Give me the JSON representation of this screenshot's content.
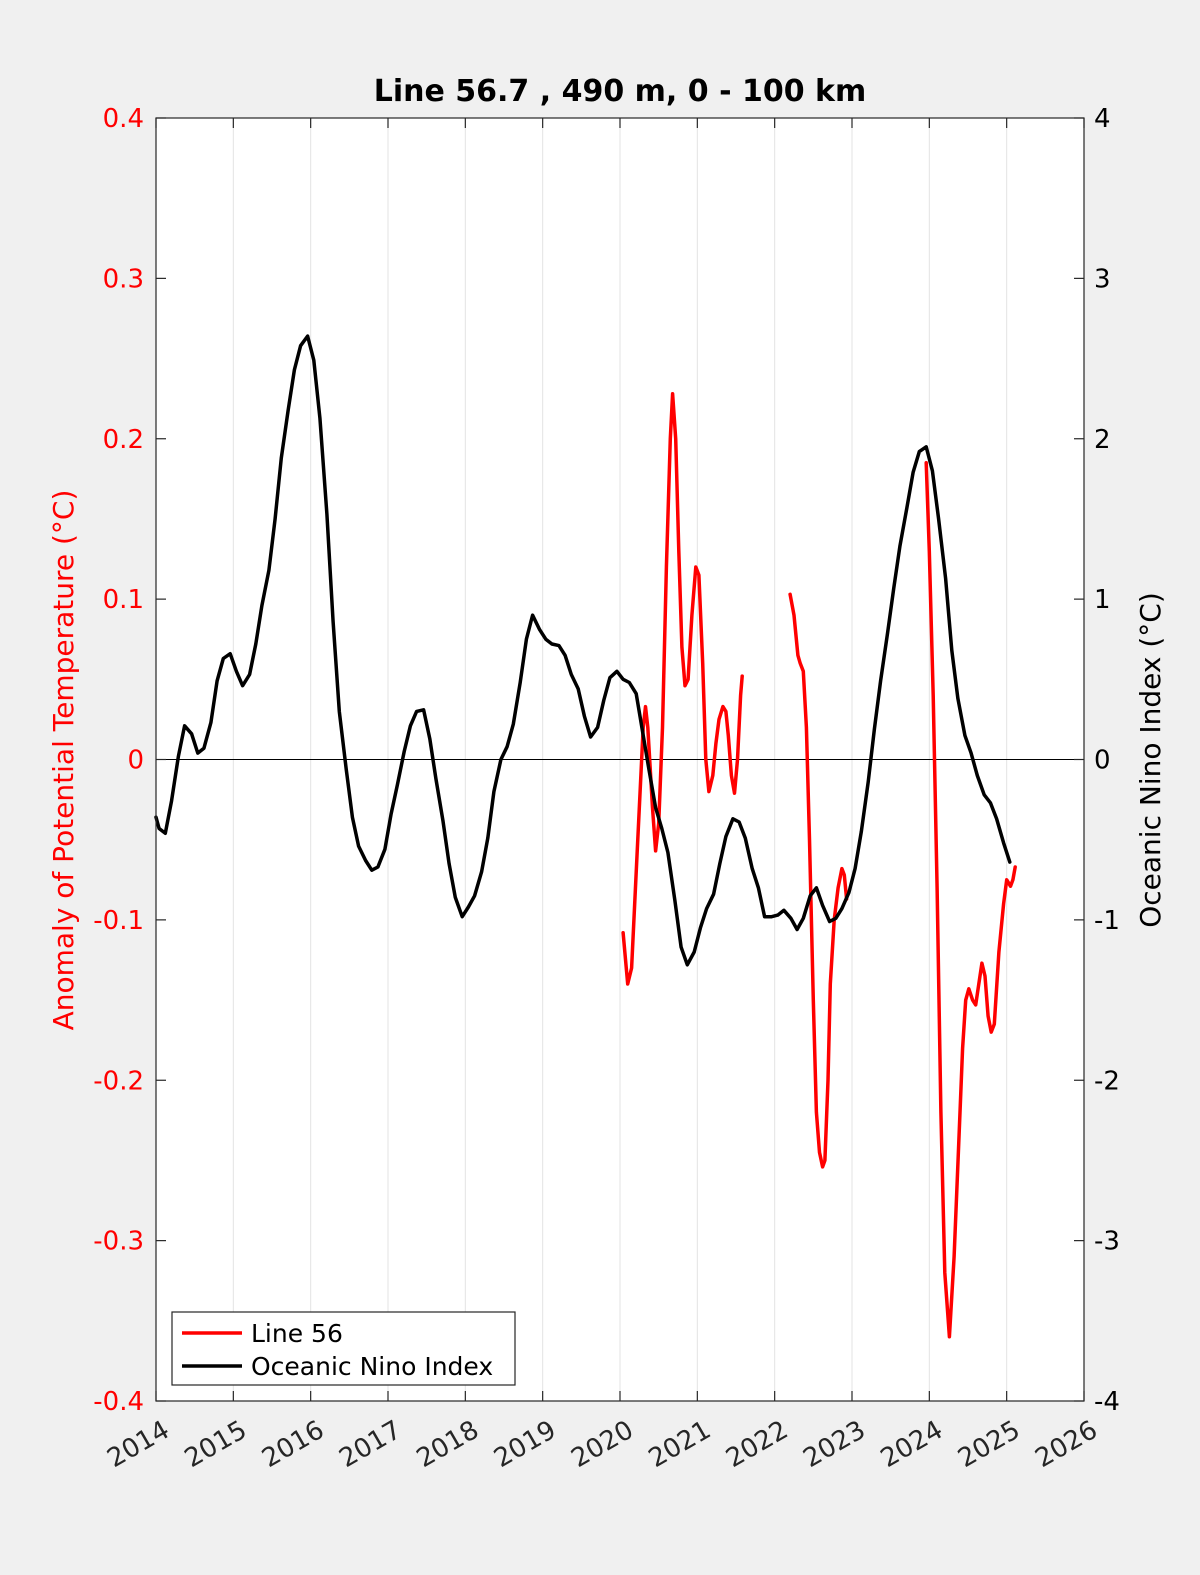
{
  "chart_data": {
    "type": "line",
    "title": "Line 56.7 , 490 m, 0 - 100 km",
    "xlim": [
      2014,
      2026
    ],
    "x_ticks": [
      "2014",
      "2015",
      "2016",
      "2017",
      "2018",
      "2019",
      "2020",
      "2021",
      "2022",
      "2023",
      "2024",
      "2025",
      "2026"
    ],
    "grid": "vertical",
    "legend_position": "bottom-left",
    "y_left": {
      "label": "Anomaly of Potential Temperature (°C)",
      "ylim": [
        -0.4,
        0.4
      ],
      "ticks": [
        "-0.4",
        "-0.3",
        "-0.2",
        "-0.1",
        "0",
        "0.1",
        "0.2",
        "0.3",
        "0.4"
      ],
      "color": "#ff0000"
    },
    "y_right": {
      "label": "Oceanic Nino Index (°C)",
      "ylim": [
        -4,
        4
      ],
      "ticks": [
        "-4",
        "-3",
        "-2",
        "-1",
        "0",
        "1",
        "2",
        "3",
        "4"
      ],
      "color": "#000000"
    },
    "series": [
      {
        "name": "Line 56",
        "color": "#ff0000",
        "axis": "left",
        "segments": [
          [
            [
              2020.04,
              -0.108
            ],
            [
              2020.1,
              -0.14
            ],
            [
              2020.15,
              -0.13
            ],
            [
              2020.22,
              -0.06
            ],
            [
              2020.3,
              0.02
            ],
            [
              2020.33,
              0.033
            ],
            [
              2020.36,
              0.02
            ],
            [
              2020.42,
              -0.03
            ],
            [
              2020.46,
              -0.057
            ],
            [
              2020.5,
              -0.04
            ],
            [
              2020.55,
              0.02
            ],
            [
              2020.6,
              0.12
            ],
            [
              2020.65,
              0.2
            ],
            [
              2020.68,
              0.228
            ],
            [
              2020.72,
              0.2
            ],
            [
              2020.76,
              0.13
            ],
            [
              2020.8,
              0.07
            ],
            [
              2020.84,
              0.046
            ],
            [
              2020.88,
              0.05
            ],
            [
              2020.93,
              0.09
            ],
            [
              2020.98,
              0.12
            ],
            [
              2021.02,
              0.115
            ],
            [
              2021.07,
              0.06
            ],
            [
              2021.11,
              0.0
            ],
            [
              2021.15,
              -0.02
            ],
            [
              2021.2,
              -0.01
            ],
            [
              2021.24,
              0.01
            ],
            [
              2021.28,
              0.025
            ],
            [
              2021.33,
              0.033
            ],
            [
              2021.37,
              0.03
            ],
            [
              2021.4,
              0.015
            ],
            [
              2021.44,
              -0.01
            ],
            [
              2021.48,
              -0.021
            ],
            [
              2021.52,
              0.0
            ],
            [
              2021.56,
              0.04
            ],
            [
              2021.58,
              0.052
            ]
          ],
          [
            [
              2022.2,
              0.103
            ],
            [
              2022.25,
              0.09
            ],
            [
              2022.3,
              0.065
            ],
            [
              2022.33,
              0.06
            ],
            [
              2022.37,
              0.055
            ],
            [
              2022.41,
              0.02
            ],
            [
              2022.45,
              -0.05
            ],
            [
              2022.5,
              -0.15
            ],
            [
              2022.54,
              -0.22
            ],
            [
              2022.58,
              -0.245
            ],
            [
              2022.62,
              -0.254
            ],
            [
              2022.65,
              -0.25
            ],
            [
              2022.69,
              -0.2
            ],
            [
              2022.72,
              -0.14
            ],
            [
              2022.77,
              -0.1
            ],
            [
              2022.82,
              -0.08
            ],
            [
              2022.87,
              -0.068
            ],
            [
              2022.9,
              -0.072
            ],
            [
              2022.93,
              -0.087
            ]
          ],
          [
            [
              2023.96,
              0.185
            ],
            [
              2024.0,
              0.13
            ],
            [
              2024.05,
              0.04
            ],
            [
              2024.1,
              -0.08
            ],
            [
              2024.15,
              -0.22
            ],
            [
              2024.2,
              -0.32
            ],
            [
              2024.26,
              -0.36
            ],
            [
              2024.32,
              -0.31
            ],
            [
              2024.38,
              -0.24
            ],
            [
              2024.43,
              -0.18
            ],
            [
              2024.47,
              -0.15
            ],
            [
              2024.51,
              -0.143
            ],
            [
              2024.56,
              -0.15
            ],
            [
              2024.6,
              -0.153
            ],
            [
              2024.64,
              -0.14
            ],
            [
              2024.68,
              -0.127
            ],
            [
              2024.72,
              -0.135
            ],
            [
              2024.76,
              -0.16
            ],
            [
              2024.8,
              -0.17
            ],
            [
              2024.84,
              -0.165
            ],
            [
              2024.9,
              -0.12
            ],
            [
              2024.96,
              -0.09
            ],
            [
              2025.0,
              -0.075
            ],
            [
              2025.05,
              -0.079
            ],
            [
              2025.08,
              -0.075
            ],
            [
              2025.11,
              -0.067
            ]
          ]
        ]
      },
      {
        "name": "Oceanic Nino Index",
        "color": "#000000",
        "axis": "right",
        "segments": [
          [
            [
              2014.0,
              -0.36
            ],
            [
              2014.04,
              -0.43
            ],
            [
              2014.12,
              -0.46
            ],
            [
              2014.2,
              -0.26
            ],
            [
              2014.29,
              0.02
            ],
            [
              2014.37,
              0.21
            ],
            [
              2014.46,
              0.16
            ],
            [
              2014.54,
              0.04
            ],
            [
              2014.62,
              0.07
            ],
            [
              2014.71,
              0.23
            ],
            [
              2014.79,
              0.49
            ],
            [
              2014.87,
              0.63
            ],
            [
              2014.96,
              0.66
            ],
            [
              2015.04,
              0.55
            ],
            [
              2015.12,
              0.46
            ],
            [
              2015.21,
              0.53
            ],
            [
              2015.29,
              0.72
            ],
            [
              2015.37,
              0.96
            ],
            [
              2015.46,
              1.18
            ],
            [
              2015.54,
              1.5
            ],
            [
              2015.62,
              1.88
            ],
            [
              2015.71,
              2.18
            ],
            [
              2015.79,
              2.43
            ],
            [
              2015.87,
              2.58
            ],
            [
              2015.96,
              2.64
            ],
            [
              2016.04,
              2.49
            ],
            [
              2016.12,
              2.13
            ],
            [
              2016.21,
              1.53
            ],
            [
              2016.29,
              0.86
            ],
            [
              2016.37,
              0.3
            ],
            [
              2016.46,
              -0.06
            ],
            [
              2016.54,
              -0.36
            ],
            [
              2016.62,
              -0.54
            ],
            [
              2016.71,
              -0.63
            ],
            [
              2016.79,
              -0.69
            ],
            [
              2016.87,
              -0.67
            ],
            [
              2016.96,
              -0.56
            ],
            [
              2017.04,
              -0.34
            ],
            [
              2017.12,
              -0.16
            ],
            [
              2017.21,
              0.05
            ],
            [
              2017.29,
              0.21
            ],
            [
              2017.37,
              0.3
            ],
            [
              2017.46,
              0.31
            ],
            [
              2017.54,
              0.13
            ],
            [
              2017.62,
              -0.12
            ],
            [
              2017.71,
              -0.38
            ],
            [
              2017.79,
              -0.65
            ],
            [
              2017.87,
              -0.86
            ],
            [
              2017.96,
              -0.98
            ],
            [
              2018.04,
              -0.92
            ],
            [
              2018.12,
              -0.85
            ],
            [
              2018.21,
              -0.7
            ],
            [
              2018.29,
              -0.49
            ],
            [
              2018.37,
              -0.2
            ],
            [
              2018.46,
              0.0
            ],
            [
              2018.54,
              0.08
            ],
            [
              2018.62,
              0.22
            ],
            [
              2018.71,
              0.48
            ],
            [
              2018.79,
              0.75
            ],
            [
              2018.87,
              0.9
            ],
            [
              2018.96,
              0.81
            ],
            [
              2019.04,
              0.75
            ],
            [
              2019.12,
              0.72
            ],
            [
              2019.21,
              0.71
            ],
            [
              2019.29,
              0.65
            ],
            [
              2019.37,
              0.53
            ],
            [
              2019.46,
              0.44
            ],
            [
              2019.54,
              0.27
            ],
            [
              2019.62,
              0.14
            ],
            [
              2019.71,
              0.2
            ],
            [
              2019.79,
              0.37
            ],
            [
              2019.87,
              0.51
            ],
            [
              2019.96,
              0.55
            ],
            [
              2020.04,
              0.5
            ],
            [
              2020.12,
              0.48
            ],
            [
              2020.21,
              0.41
            ],
            [
              2020.29,
              0.18
            ],
            [
              2020.37,
              -0.05
            ],
            [
              2020.46,
              -0.3
            ],
            [
              2020.54,
              -0.43
            ],
            [
              2020.62,
              -0.58
            ],
            [
              2020.71,
              -0.88
            ],
            [
              2020.79,
              -1.17
            ],
            [
              2020.87,
              -1.28
            ],
            [
              2020.96,
              -1.2
            ],
            [
              2021.04,
              -1.05
            ],
            [
              2021.12,
              -0.93
            ],
            [
              2021.21,
              -0.84
            ],
            [
              2021.29,
              -0.65
            ],
            [
              2021.37,
              -0.48
            ],
            [
              2021.46,
              -0.37
            ],
            [
              2021.54,
              -0.39
            ],
            [
              2021.62,
              -0.49
            ],
            [
              2021.71,
              -0.68
            ],
            [
              2021.79,
              -0.8
            ],
            [
              2021.87,
              -0.98
            ],
            [
              2021.96,
              -0.98
            ],
            [
              2022.04,
              -0.97
            ],
            [
              2022.12,
              -0.94
            ],
            [
              2022.21,
              -0.99
            ],
            [
              2022.29,
              -1.06
            ],
            [
              2022.37,
              -0.99
            ],
            [
              2022.46,
              -0.85
            ],
            [
              2022.54,
              -0.8
            ],
            [
              2022.62,
              -0.91
            ],
            [
              2022.71,
              -1.01
            ],
            [
              2022.79,
              -0.99
            ],
            [
              2022.87,
              -0.93
            ],
            [
              2022.96,
              -0.83
            ],
            [
              2023.04,
              -0.68
            ],
            [
              2023.12,
              -0.45
            ],
            [
              2023.21,
              -0.14
            ],
            [
              2023.29,
              0.19
            ],
            [
              2023.37,
              0.49
            ],
            [
              2023.46,
              0.79
            ],
            [
              2023.54,
              1.07
            ],
            [
              2023.62,
              1.33
            ],
            [
              2023.71,
              1.57
            ],
            [
              2023.79,
              1.79
            ],
            [
              2023.87,
              1.92
            ],
            [
              2023.96,
              1.95
            ],
            [
              2024.04,
              1.8
            ],
            [
              2024.12,
              1.5
            ],
            [
              2024.21,
              1.13
            ],
            [
              2024.29,
              0.68
            ],
            [
              2024.37,
              0.38
            ],
            [
              2024.46,
              0.15
            ],
            [
              2024.54,
              0.04
            ],
            [
              2024.62,
              -0.1
            ],
            [
              2024.71,
              -0.22
            ],
            [
              2024.79,
              -0.27
            ],
            [
              2024.87,
              -0.37
            ],
            [
              2024.96,
              -0.52
            ],
            [
              2025.04,
              -0.64
            ]
          ]
        ]
      }
    ]
  }
}
